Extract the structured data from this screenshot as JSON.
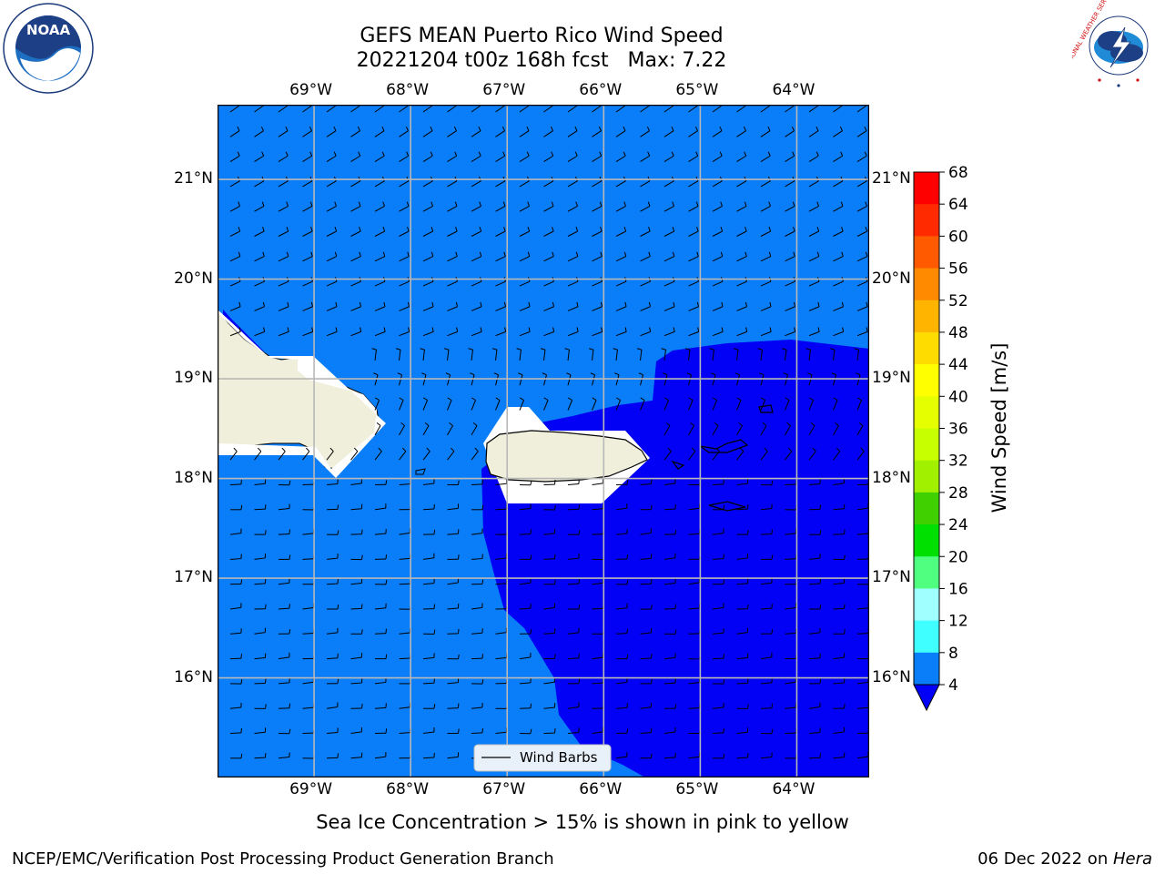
{
  "title": {
    "line1": "GEFS MEAN Puerto Rico Wind Speed",
    "line2": "20221204 t00z 168h fcst   Max: 7.22"
  },
  "map": {
    "lon_labels": [
      "69°W",
      "68°W",
      "67°W",
      "66°W",
      "65°W",
      "64°W"
    ],
    "lat_labels": [
      "21°N",
      "20°N",
      "19°N",
      "18°N",
      "17°N",
      "16°N"
    ],
    "lon_range": [
      -70,
      -63.25
    ],
    "lat_range": [
      15,
      21.75
    ],
    "ocean_colors": {
      "wind_4_8": "#0a7ef8",
      "wind_below_4": "#0200f5",
      "land": "#efefdc"
    },
    "legend_label": "Wind Barbs"
  },
  "colorbar": {
    "label": "Wind Speed [m/s]",
    "ticks": [
      "68",
      "64",
      "60",
      "56",
      "52",
      "48",
      "44",
      "40",
      "36",
      "32",
      "28",
      "24",
      "20",
      "16",
      "12",
      "8",
      "4"
    ],
    "colors_top_to_bottom": [
      "#ff0000",
      "#ff2a00",
      "#ff5a00",
      "#ff8a00",
      "#ffb400",
      "#ffdc00",
      "#ffff00",
      "#e6ff00",
      "#c8ff00",
      "#a0f000",
      "#40d000",
      "#00e000",
      "#50ff80",
      "#a0ffff",
      "#40ffff",
      "#00ffff",
      "#00e0ff",
      "#0a7ef8"
    ],
    "underflow_color": "#0200f5"
  },
  "note": "Sea Ice Concentration > 15% is shown in pink to yellow",
  "footer": {
    "left": "NCEP/EMC/Verification Post Processing Product Generation Branch",
    "right_date": "06 Dec 2022 on ",
    "right_host": "Hera"
  },
  "logos": {
    "noaa_text": "NOAA",
    "nws_text": "NATIONAL WEATHER SERVICE"
  }
}
